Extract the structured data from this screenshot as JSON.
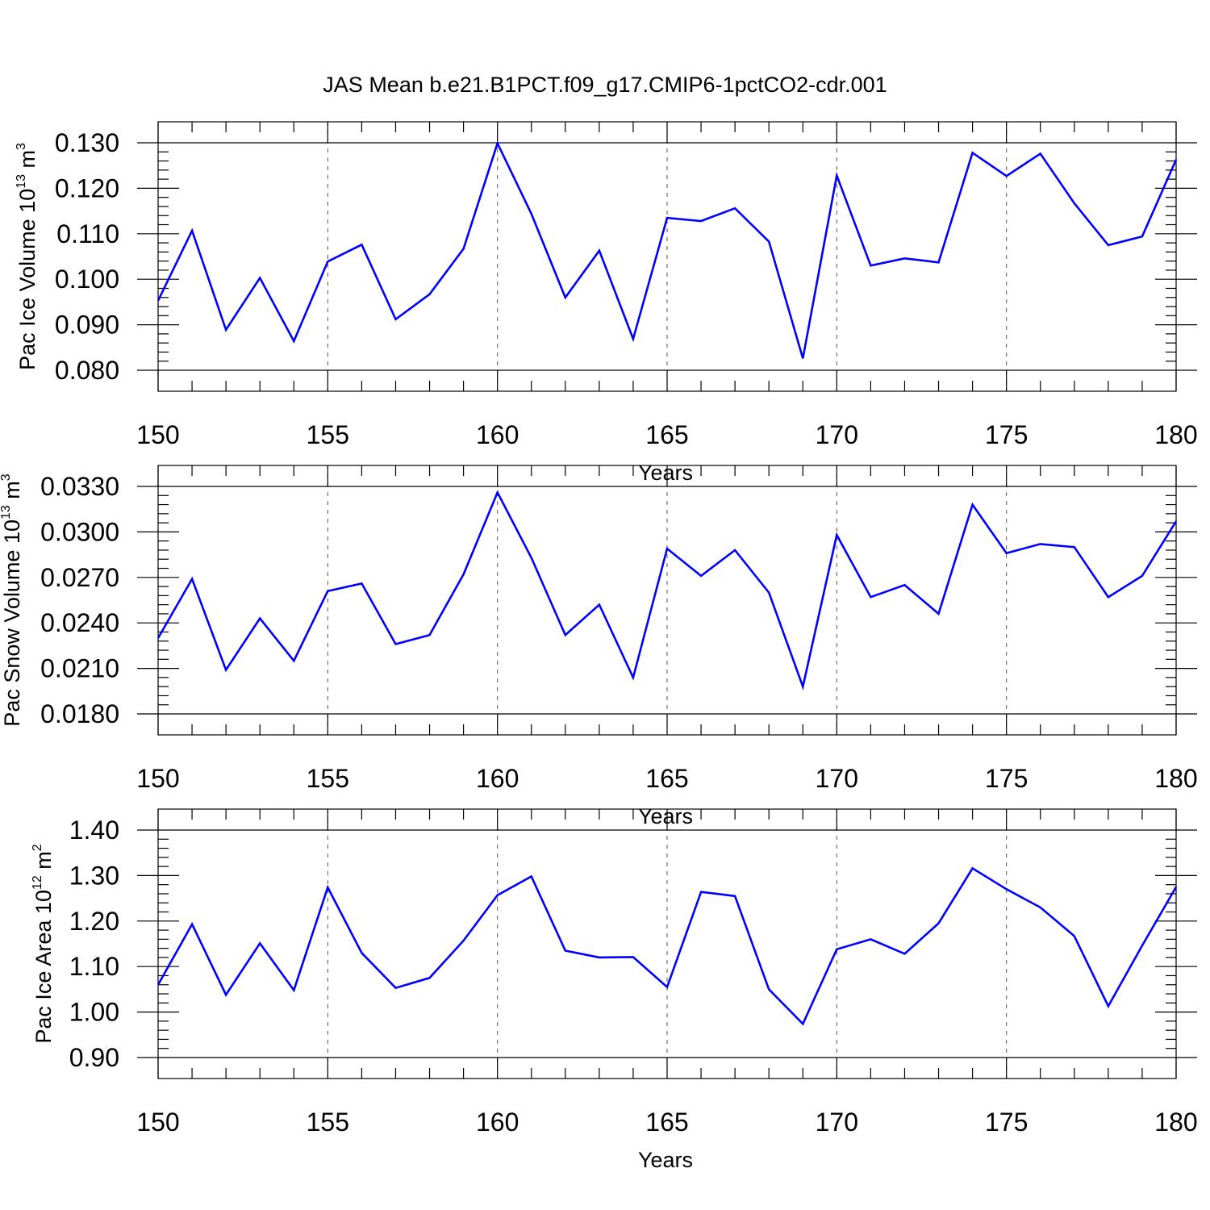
{
  "title": "JAS Mean b.e21.B1PCT.f09_g17.CMIP6-1pctCO2-cdr.001",
  "series_color": "#0000ff",
  "chart_data": [
    {
      "type": "line",
      "ylabel": {
        "text": "Pac Ice Volume 10",
        "exp": "13",
        "unit": " m",
        "unit_exp": "3"
      },
      "xlabel": "Years",
      "xlim": [
        150,
        180
      ],
      "ylim": [
        0.08,
        0.13
      ],
      "xticks": [
        "150",
        "155",
        "160",
        "165",
        "170",
        "175",
        "180"
      ],
      "yticks": [
        "0.080",
        "0.090",
        "0.100",
        "0.110",
        "0.120",
        "0.130"
      ],
      "grid": "vertical dashed at major x ticks",
      "x": [
        150,
        151,
        152,
        153,
        154,
        155,
        156,
        157,
        158,
        159,
        160,
        161,
        162,
        163,
        164,
        165,
        166,
        167,
        168,
        169,
        170,
        171,
        172,
        173,
        174,
        175,
        176,
        177,
        178,
        179,
        180
      ],
      "values": [
        0.0953,
        0.1107,
        0.0889,
        0.1003,
        0.0864,
        0.1039,
        0.1076,
        0.0912,
        0.0967,
        0.1067,
        0.1299,
        0.1144,
        0.096,
        0.1063,
        0.0869,
        0.1135,
        0.1128,
        0.1156,
        0.1083,
        0.0826,
        0.1228,
        0.103,
        0.1046,
        0.1037,
        0.1278,
        0.1227,
        0.1276,
        0.1167,
        0.1075,
        0.1094,
        0.1263
      ]
    },
    {
      "type": "line",
      "ylabel": {
        "text": "Pac Snow Volume 10",
        "exp": "13",
        "unit": " m",
        "unit_exp": "3"
      },
      "xlabel": "Years",
      "xlim": [
        150,
        180
      ],
      "ylim": [
        0.018,
        0.033
      ],
      "xticks": [
        "150",
        "155",
        "160",
        "165",
        "170",
        "175",
        "180"
      ],
      "yticks": [
        "0.0180",
        "0.0210",
        "0.0240",
        "0.0270",
        "0.0300",
        "0.0330"
      ],
      "grid": "vertical dashed at major x ticks",
      "x": [
        150,
        151,
        152,
        153,
        154,
        155,
        156,
        157,
        158,
        159,
        160,
        161,
        162,
        163,
        164,
        165,
        166,
        167,
        168,
        169,
        170,
        171,
        172,
        173,
        174,
        175,
        176,
        177,
        178,
        179,
        180
      ],
      "values": [
        0.023,
        0.0269,
        0.0209,
        0.0243,
        0.0215,
        0.0261,
        0.0266,
        0.0226,
        0.0232,
        0.0272,
        0.0326,
        0.0283,
        0.0232,
        0.0252,
        0.0204,
        0.0289,
        0.0271,
        0.0288,
        0.026,
        0.0198,
        0.0298,
        0.0257,
        0.0265,
        0.0246,
        0.0318,
        0.0286,
        0.0292,
        0.029,
        0.0257,
        0.0271,
        0.0307
      ]
    },
    {
      "type": "line",
      "ylabel": {
        "text": "Pac Ice Area 10",
        "exp": "12",
        "unit": " m",
        "unit_exp": "2"
      },
      "xlabel": "Years",
      "xlim": [
        150,
        180
      ],
      "ylim": [
        0.9,
        1.4
      ],
      "xticks": [
        "150",
        "155",
        "160",
        "165",
        "170",
        "175",
        "180"
      ],
      "yticks": [
        "0.90",
        "1.00",
        "1.10",
        "1.20",
        "1.30",
        "1.40"
      ],
      "grid": "vertical dashed at major x ticks",
      "x": [
        150,
        151,
        152,
        153,
        154,
        155,
        156,
        157,
        158,
        159,
        160,
        161,
        162,
        163,
        164,
        165,
        166,
        167,
        168,
        169,
        170,
        171,
        172,
        173,
        174,
        175,
        176,
        177,
        178,
        179,
        180
      ],
      "values": [
        1.06,
        1.193,
        1.038,
        1.151,
        1.048,
        1.274,
        1.13,
        1.053,
        1.075,
        1.157,
        1.257,
        1.298,
        1.135,
        1.12,
        1.121,
        1.055,
        1.264,
        1.255,
        1.05,
        0.974,
        1.138,
        1.16,
        1.128,
        1.195,
        1.316,
        1.27,
        1.23,
        1.167,
        1.013,
        1.146,
        1.275
      ]
    }
  ]
}
